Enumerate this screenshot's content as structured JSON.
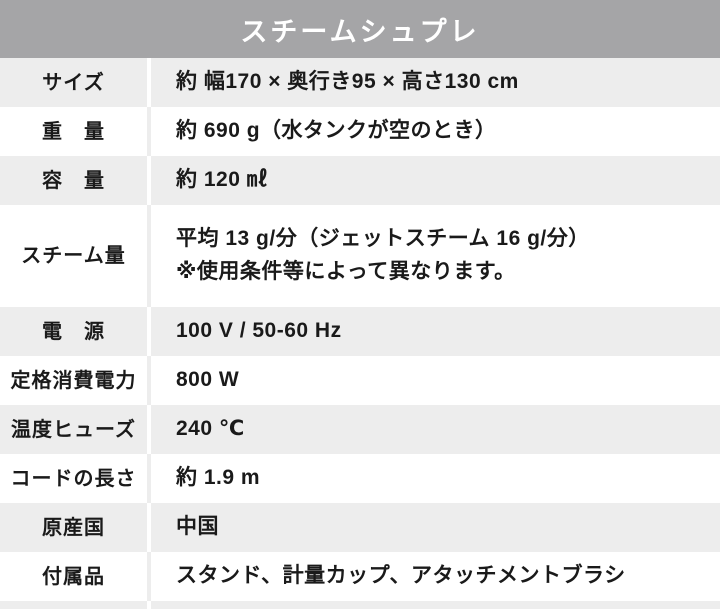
{
  "header": {
    "title": "スチームシュプレ"
  },
  "colors": {
    "header_bg": "#a5a5a7",
    "header_text": "#ffffff",
    "row_gray_bg": "#ededed",
    "row_white_bg": "#ffffff",
    "body_text": "#1a1a1a"
  },
  "spec_table": {
    "rows": [
      {
        "label": "サイズ",
        "value": "約 幅170 × 奥行き95 × 高さ130 cm"
      },
      {
        "label": "重　量",
        "value": "約 690 g（水タンクが空のとき）"
      },
      {
        "label": "容　量",
        "value": "約 120 ㎖"
      },
      {
        "label": "スチーム量",
        "value": "平均 13 g/分（ジェットスチーム 16 g/分）",
        "value_line2": "※使用条件等によって異なります。"
      },
      {
        "label": "電　源",
        "value": "100 V / 50-60 Hz"
      },
      {
        "label": "定格消費電力",
        "value": "800 W"
      },
      {
        "label": "温度ヒューズ",
        "value": "240 ℃"
      },
      {
        "label": "コードの長さ",
        "value": "約 1.9 m"
      },
      {
        "label": "原産国",
        "value": "中国"
      },
      {
        "label": "付属品",
        "value": "スタンド、計量カップ、アタッチメントブラシ"
      }
    ]
  }
}
